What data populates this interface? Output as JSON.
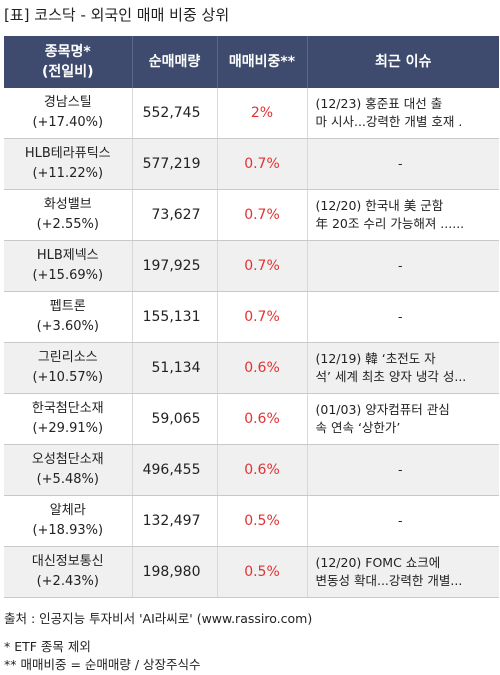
{
  "title": "[표] 코스닥 - 외국인 매매 비중 상위",
  "headers": [
    "종목명*",
    "(전일비)",
    "순매매량",
    "매매비중**",
    "최근 이슈"
  ],
  "rows": [
    {
      "name": "경남스틸",
      "change": "(+17.40%)",
      "volume": "552,745",
      "ratio": "2%",
      "issue1": "(12/23) 홍준표 대선 출",
      "issue2": "마 시사...강력한 개별 호재 ."
    },
    {
      "name": "HLB테라퓨틱스",
      "change": "(+11.22%)",
      "volume": "577,219",
      "ratio": "0.7%",
      "issue1": "-",
      "issue2": ""
    },
    {
      "name": "화성밸브",
      "change": "(+2.55%)",
      "volume": "73,627",
      "ratio": "0.7%",
      "issue1": "(12/20) 한국내 美 군함",
      "issue2": "  年 20조 수리 가능해져 ......"
    },
    {
      "name": "HLB제넥스",
      "change": "(+15.69%)",
      "volume": "197,925",
      "ratio": "0.7%",
      "issue1": "-",
      "issue2": ""
    },
    {
      "name": "펩트론",
      "change": "(+3.60%)",
      "volume": "155,131",
      "ratio": "0.7%",
      "issue1": "-",
      "issue2": ""
    },
    {
      "name": "그린리소스",
      "change": "(+10.57%)",
      "volume": "51,134",
      "ratio": "0.6%",
      "issue1": "(12/19) 韓 ‘초전도 자",
      "issue2": "석’ 세계 최초 양자 냉각 성..."
    },
    {
      "name": "한국첨단소재",
      "change": "(+29.91%)",
      "volume": "59,065",
      "ratio": "0.6%",
      "issue1": "(01/03) 양자컴퓨터 관심",
      "issue2": " 속 연속 ‘상한가’"
    },
    {
      "name": "오성첨단소재",
      "change": "(+5.48%)",
      "volume": "496,455",
      "ratio": "0.6%",
      "issue1": "-",
      "issue2": ""
    },
    {
      "name": "알체라",
      "change": "(+18.93%)",
      "volume": "132,497",
      "ratio": "0.5%",
      "issue1": "-",
      "issue2": ""
    },
    {
      "name": "대신정보통신",
      "change": "(+2.43%)",
      "volume": "198,980",
      "ratio": "0.5%",
      "issue1": "(12/20) FOMC 쇼크에",
      "issue2": "변동성 확대...강력한 개별..."
    }
  ],
  "footer": {
    "source": "출처 : 인공지능 투자비서 'AI라씨로' (www.rassiro.com)",
    "note1": "* ETF 종목 제외",
    "note2": "** 매매비중 = 순매매량 / 상장주식수"
  }
}
